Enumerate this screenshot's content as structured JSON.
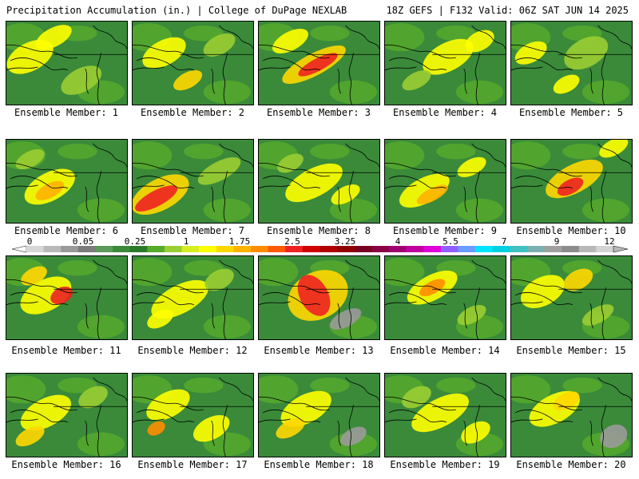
{
  "header": {
    "left_title": "Precipitation Accumulation (in.) | College of DuPage NEXLAB",
    "right_title": "18Z GEFS | F132 Valid: 06Z SAT JUN 14 2025"
  },
  "colorbar": {
    "tick_labels": [
      "0",
      "0.05",
      "0.25",
      "1",
      "1.75",
      "2.5",
      "3.25",
      "4",
      "5.5",
      "7",
      "9",
      "12"
    ],
    "colors": [
      "#d7d7d7",
      "#b9b9b9",
      "#9a9a9a",
      "#7c7c7c",
      "#5b9a5b",
      "#3a8a3a",
      "#2b7a2b",
      "#57aa2a",
      "#9acd32",
      "#d6ee20",
      "#ffff00",
      "#ffd700",
      "#ffb300",
      "#ff8c00",
      "#ff5a00",
      "#ee2222",
      "#d00000",
      "#b00000",
      "#900000",
      "#780020",
      "#8b0045",
      "#a00070",
      "#c000a0",
      "#e000d8",
      "#9060ff",
      "#6a9cff",
      "#00e5ff",
      "#00d0e0",
      "#40c0c0",
      "#7ab0b0",
      "#a0a0a0",
      "#8c8c8c",
      "#b8b8b8",
      "#d4d4d4"
    ]
  },
  "panels": [
    {
      "label": "Ensemble Member: 1",
      "blobs": [
        [
          30,
          45,
          32,
          18,
          "#ffff00"
        ],
        [
          95,
          75,
          28,
          15,
          "#9acd32"
        ],
        [
          60,
          20,
          25,
          12,
          "#ffff00"
        ]
      ]
    },
    {
      "label": "Ensemble Member: 2",
      "blobs": [
        [
          40,
          40,
          30,
          16,
          "#ffff00"
        ],
        [
          70,
          75,
          20,
          10,
          "#ffd700"
        ],
        [
          110,
          30,
          22,
          12,
          "#9acd32"
        ]
      ]
    },
    {
      "label": "Ensemble Member: 3",
      "blobs": [
        [
          70,
          55,
          45,
          14,
          "#ffd700"
        ],
        [
          75,
          55,
          28,
          8,
          "#ee2222"
        ],
        [
          40,
          25,
          25,
          12,
          "#ffff00"
        ]
      ]
    },
    {
      "label": "Ensemble Member: 4",
      "blobs": [
        [
          80,
          45,
          35,
          18,
          "#ffff00"
        ],
        [
          40,
          75,
          20,
          10,
          "#9acd32"
        ],
        [
          120,
          25,
          20,
          12,
          "#ffff00"
        ]
      ]
    },
    {
      "label": "Ensemble Member: 5",
      "blobs": [
        [
          25,
          40,
          22,
          12,
          "#ffff00"
        ],
        [
          95,
          40,
          30,
          18,
          "#9acd32"
        ],
        [
          70,
          80,
          18,
          10,
          "#ffff00"
        ]
      ]
    },
    {
      "label": "Ensemble Member: 6",
      "blobs": [
        [
          55,
          60,
          35,
          18,
          "#ffff00"
        ],
        [
          55,
          65,
          20,
          9,
          "#ffb300"
        ],
        [
          30,
          25,
          20,
          10,
          "#9acd32"
        ]
      ]
    },
    {
      "label": "Ensemble Member: 7",
      "blobs": [
        [
          35,
          70,
          40,
          20,
          "#ffd700"
        ],
        [
          30,
          75,
          30,
          10,
          "#ee2222"
        ],
        [
          110,
          40,
          30,
          12,
          "#9acd32"
        ]
      ]
    },
    {
      "label": "Ensemble Member: 8",
      "blobs": [
        [
          70,
          55,
          40,
          18,
          "#ffff00"
        ],
        [
          40,
          30,
          18,
          10,
          "#9acd32"
        ],
        [
          110,
          70,
          20,
          10,
          "#ffff00"
        ]
      ]
    },
    {
      "label": "Ensemble Member: 9",
      "blobs": [
        [
          50,
          65,
          35,
          16,
          "#ffff00"
        ],
        [
          60,
          70,
          22,
          8,
          "#ffb300"
        ],
        [
          110,
          35,
          20,
          10,
          "#ffff00"
        ]
      ]
    },
    {
      "label": "Ensemble Member: 10",
      "blobs": [
        [
          80,
          50,
          40,
          18,
          "#ffd700"
        ],
        [
          75,
          60,
          18,
          9,
          "#ee2222"
        ],
        [
          130,
          10,
          20,
          10,
          "#ffff00"
        ]
      ]
    },
    {
      "label": "Ensemble Member: 11",
      "blobs": [
        [
          50,
          50,
          35,
          20,
          "#ffff00"
        ],
        [
          70,
          50,
          15,
          10,
          "#ee2222"
        ],
        [
          35,
          25,
          18,
          10,
          "#ffd700"
        ]
      ]
    },
    {
      "label": "Ensemble Member: 12",
      "blobs": [
        [
          60,
          55,
          40,
          18,
          "#ffff00"
        ],
        [
          110,
          30,
          20,
          12,
          "#9acd32"
        ],
        [
          35,
          80,
          18,
          10,
          "#ffff00"
        ]
      ]
    },
    {
      "label": "Ensemble Member: 13",
      "blobs": [
        [
          75,
          50,
          40,
          30,
          "#ffd700"
        ],
        [
          70,
          50,
          18,
          28,
          "#ee2222"
        ],
        [
          110,
          80,
          22,
          10,
          "#9a9a9a"
        ]
      ]
    },
    {
      "label": "Ensemble Member: 14",
      "blobs": [
        [
          60,
          40,
          35,
          16,
          "#ffff00"
        ],
        [
          60,
          40,
          18,
          8,
          "#ff8c00"
        ],
        [
          110,
          75,
          20,
          10,
          "#9acd32"
        ]
      ]
    },
    {
      "label": "Ensemble Member: 15",
      "blobs": [
        [
          40,
          45,
          30,
          18,
          "#ffff00"
        ],
        [
          85,
          30,
          20,
          12,
          "#ffd700"
        ],
        [
          110,
          75,
          22,
          10,
          "#9acd32"
        ]
      ]
    },
    {
      "label": "Ensemble Member: 16",
      "blobs": [
        [
          50,
          50,
          35,
          18,
          "#ffff00"
        ],
        [
          30,
          80,
          20,
          10,
          "#ffd700"
        ],
        [
          110,
          30,
          20,
          12,
          "#9acd32"
        ]
      ]
    },
    {
      "label": "Ensemble Member: 17",
      "blobs": [
        [
          45,
          40,
          30,
          16,
          "#ffff00"
        ],
        [
          100,
          70,
          25,
          14,
          "#ffff00"
        ],
        [
          30,
          70,
          12,
          8,
          "#ff8c00"
        ]
      ]
    },
    {
      "label": "Ensemble Member: 18",
      "blobs": [
        [
          60,
          45,
          35,
          18,
          "#ffff00"
        ],
        [
          40,
          70,
          20,
          10,
          "#ffd700"
        ],
        [
          120,
          80,
          18,
          10,
          "#9a9a9a"
        ]
      ]
    },
    {
      "label": "Ensemble Member: 19",
      "blobs": [
        [
          70,
          50,
          40,
          18,
          "#ffff00"
        ],
        [
          40,
          30,
          20,
          12,
          "#9acd32"
        ],
        [
          115,
          75,
          20,
          12,
          "#ffff00"
        ]
      ]
    },
    {
      "label": "Ensemble Member: 20",
      "blobs": [
        [
          55,
          45,
          35,
          18,
          "#ffff00"
        ],
        [
          70,
          35,
          18,
          10,
          "#ffd700"
        ],
        [
          130,
          80,
          18,
          14,
          "#9a9a9a"
        ]
      ]
    }
  ]
}
